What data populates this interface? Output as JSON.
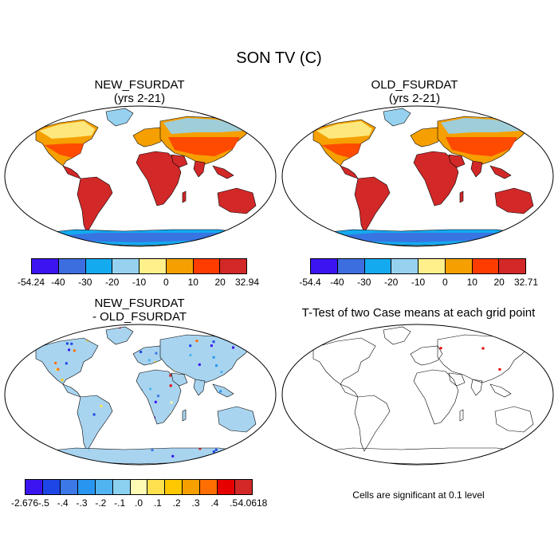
{
  "title": "SON TV (C)",
  "panels": [
    {
      "id": "new",
      "title_line1": "NEW_FSURDAT",
      "title_line2": "(yrs 2-21)"
    },
    {
      "id": "old",
      "title_line1": "OLD_FSURDAT",
      "title_line2": "(yrs 2-21)"
    },
    {
      "id": "diff",
      "title_line1": "NEW_FSURDAT",
      "title_line2": "- OLD_FSURDAT"
    },
    {
      "id": "ttest",
      "title_line1": "T-Test of two Case means at each grid point",
      "title_line2": ""
    }
  ],
  "colorbars": {
    "new": {
      "labels": [
        "-54.24",
        "-40",
        "-30",
        "-20",
        "-10",
        "0",
        "10",
        "20",
        "32.94"
      ],
      "colors": [
        "#3c14f0",
        "#3c6ee0",
        "#14aaf0",
        "#96d2f0",
        "#fff08c",
        "#f5a000",
        "#ff3c00",
        "#d22828"
      ]
    },
    "old": {
      "labels": [
        "-54.4",
        "-40",
        "-30",
        "-20",
        "-10",
        "0",
        "10",
        "20",
        "32.71"
      ],
      "colors": [
        "#3c14f0",
        "#3c6ee0",
        "#14aaf0",
        "#96d2f0",
        "#fff08c",
        "#f5a000",
        "#ff3c00",
        "#d22828"
      ]
    },
    "diff": {
      "labels": [
        "-2.676",
        "-.5",
        "-.4",
        "-.3",
        "-.2",
        "-.1",
        ".0",
        ".1",
        ".2",
        ".3",
        ".4",
        ".5",
        "4.0618"
      ],
      "colors": [
        "#3c14f0",
        "#1e46e6",
        "#3c78e6",
        "#2896f0",
        "#50b4f0",
        "#8cd2f0",
        "#fffab4",
        "#ffe150",
        "#ffc800",
        "#f5a000",
        "#ff6e00",
        "#e60000",
        "#d22828"
      ]
    }
  },
  "ttest_note": "Cells are significant at 0.1 level",
  "map_colors": {
    "land_warm": "#d22828",
    "land_mid": "#ff3c00",
    "land_orange": "#f5a000",
    "land_yellow": "#fff08c",
    "land_lightblue": "#96d2f0",
    "land_blue": "#14aaf0",
    "land_darkblue": "#3c6ee0",
    "sig_red": "#e60000",
    "diff_neutral": "#a8d4f0",
    "ocean": "#ffffff"
  }
}
